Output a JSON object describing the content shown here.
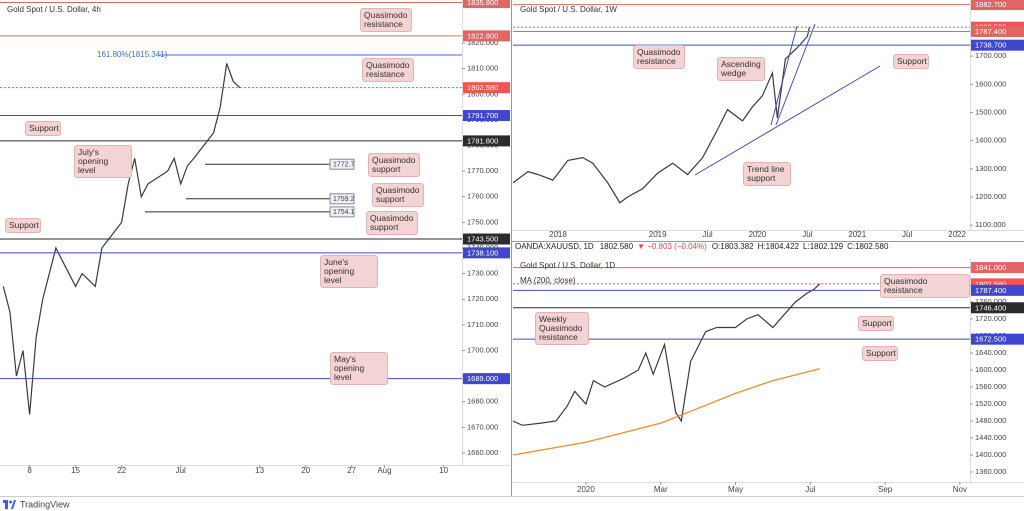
{
  "brand": "TradingView",
  "chart_data": [
    {
      "type": "line",
      "title": "Gold Spot / U.S. Dollar, 4h",
      "series": [
        {
          "color": "#3a3a3a",
          "x": [
            4,
            5,
            6,
            7,
            8,
            9,
            10,
            12,
            13,
            15,
            16,
            18,
            19,
            22,
            23,
            24,
            25,
            26,
            29,
            30,
            31,
            32,
            33,
            36,
            37,
            38,
            39,
            40
          ],
          "values": [
            1725,
            1715,
            1690,
            1700,
            1675,
            1705,
            1720,
            1740,
            1735,
            1725,
            1730,
            1725,
            1740,
            1750,
            1765,
            1775,
            1760,
            1765,
            1770,
            1775,
            1765,
            1772,
            1775,
            1785,
            1795,
            1812,
            1805,
            1802.58
          ]
        }
      ],
      "xlim": [
        3.5,
        73.8
      ],
      "xticks": [
        8,
        15,
        22,
        {
          "value": 31,
          "label": "Jul"
        },
        {
          "value": 43,
          "label": "13"
        },
        {
          "value": 50,
          "label": "20"
        },
        {
          "value": 57,
          "label": "27"
        },
        {
          "value": 62,
          "label": "Aug"
        },
        {
          "value": 71,
          "label": "10"
        }
      ],
      "ylim": [
        1655.3,
        1836.8
      ],
      "yticks": [
        {
          "value": 1660,
          "label": "1660.000"
        },
        {
          "value": 1670,
          "label": "1670.000"
        },
        {
          "value": 1680,
          "label": "1680.000"
        },
        {
          "value": 1690,
          "label": "1690.000"
        },
        {
          "value": 1700,
          "label": "1700.000"
        },
        {
          "value": 1710,
          "label": "1710.000"
        },
        {
          "value": 1720,
          "label": "1720.000"
        },
        {
          "value": 1730,
          "label": "1730.000"
        },
        {
          "value": 1740,
          "label": "1740.000"
        },
        {
          "value": 1750,
          "label": "1750.000"
        },
        {
          "value": 1760,
          "label": "1760.000"
        },
        {
          "value": 1770,
          "label": "1770.000"
        },
        {
          "value": 1780,
          "label": "1780.000"
        },
        {
          "value": 1790,
          "label": "1790.000"
        },
        {
          "value": 1800,
          "label": "1800.000"
        },
        {
          "value": 1810,
          "label": "1810.000"
        },
        {
          "value": 1820,
          "label": "1820.000"
        }
      ],
      "levels": [
        {
          "value": 1835.8,
          "label": "1835.800",
          "color": "#e06666"
        },
        {
          "value": 1822.8,
          "label": "1822.800",
          "color": "#e06666"
        },
        {
          "value": 1802.58,
          "label": "1802.580",
          "color": "#f05454"
        },
        {
          "value": 1791.7,
          "label": "1791.700",
          "color": "#3f48cc"
        },
        {
          "value": 1781.8,
          "label": "1781.800",
          "color": "#2b2b2b"
        },
        {
          "value": 1743.5,
          "label": "1743.500",
          "color": "#2b2b2b"
        },
        {
          "value": 1738.1,
          "label": "1738.100",
          "color": "#3f48cc"
        },
        {
          "value": 1689,
          "label": "1689.000",
          "color": "#3f48cc"
        }
      ],
      "marked_levels": [
        1772.7,
        1759.2,
        1754.1
      ],
      "fib": {
        "value": 1815.341,
        "label": "161.80%(1815.341)"
      },
      "annotations": [
        "Quasimodo resistance",
        "Quasimodo resistance",
        "Support",
        "July's opening level",
        "Quasimodo support",
        "Quasimodo support",
        "Quasimodo support",
        "Support",
        "June's opening level",
        "May's opening level"
      ],
      "grid": false
    },
    {
      "type": "line",
      "title": "Gold Spot / U.S. Dollar, 1W",
      "series": [
        {
          "color": "#3a3a3a",
          "x": [
            2017.55,
            2017.7,
            2017.8,
            2017.95,
            2018.1,
            2018.25,
            2018.35,
            2018.5,
            2018.62,
            2018.7,
            2018.85,
            2019.0,
            2019.15,
            2019.3,
            2019.45,
            2019.6,
            2019.7,
            2019.85,
            2019.95,
            2020.05,
            2020.15,
            2020.2,
            2020.28,
            2020.4,
            2020.5,
            2020.52
          ],
          "values": [
            1250,
            1290,
            1280,
            1260,
            1330,
            1340,
            1320,
            1250,
            1180,
            1200,
            1230,
            1285,
            1320,
            1280,
            1340,
            1440,
            1510,
            1470,
            1520,
            1560,
            1640,
            1480,
            1690,
            1730,
            1770,
            1802.58
          ]
        }
      ],
      "xlim": [
        2017.55,
        2022.13
      ],
      "xticks": [
        2018,
        2019,
        {
          "value": 2019.5,
          "label": "Jul"
        },
        2020,
        {
          "value": 2020.5,
          "label": "Jul"
        },
        2021,
        {
          "value": 2021.5,
          "label": "Jul"
        },
        2022
      ],
      "ylim": [
        1083,
        1899
      ],
      "yticks": [
        {
          "value": 1100,
          "label": "1100.000"
        },
        {
          "value": 1200,
          "label": "1200.000"
        },
        {
          "value": 1300,
          "label": "1300.000"
        },
        {
          "value": 1400,
          "label": "1400.000"
        },
        {
          "value": 1500,
          "label": "1500.000"
        },
        {
          "value": 1600,
          "label": "1600.000"
        },
        {
          "value": 1700,
          "label": "1700.000"
        }
      ],
      "levels": [
        {
          "value": 1882.7,
          "label": "1882.700",
          "color": "#e06666"
        },
        {
          "value": 1802.58,
          "label": "1802.580",
          "color": "#f05454"
        },
        {
          "value": 1787.4,
          "label": "1787.400",
          "color": "#e06666"
        },
        {
          "value": 1738.7,
          "label": "1738.700",
          "color": "#3f48cc"
        }
      ],
      "annotations": [
        "Quasimodo resistance",
        "Ascending wedge",
        "Support",
        "Trend line support"
      ],
      "grid": false
    },
    {
      "type": "line",
      "title": "Gold Spot / U.S. Dollar, 1D",
      "header": {
        "symbol": "OANDA:XAUUSD, 1D",
        "last": "1802.580",
        "change": "▼ −0.803 (−0.04%)",
        "ohlc": [
          {
            "label": "O:",
            "value": "1803.382"
          },
          {
            "label": "H:",
            "value": "1804.422"
          },
          {
            "label": "L:",
            "value": "1802.129"
          },
          {
            "label": "C:",
            "value": "1802.580"
          }
        ]
      },
      "series": [
        {
          "color": "#3a3a3a",
          "x": [
            -1.95,
            -1.7,
            -1.2,
            -0.8,
            -0.5,
            -0.3,
            0,
            0.2,
            0.5,
            1.0,
            1.4,
            1.6,
            1.8,
            2.1,
            2.4,
            2.55,
            2.8,
            3.2,
            3.5,
            4.0,
            4.3,
            4.6,
            5.0,
            5.3,
            5.6,
            5.9,
            6.1,
            6.25
          ],
          "values": [
            1480,
            1470,
            1475,
            1480,
            1515,
            1550,
            1520,
            1575,
            1560,
            1580,
            1600,
            1640,
            1590,
            1660,
            1500,
            1480,
            1620,
            1690,
            1700,
            1700,
            1720,
            1730,
            1700,
            1730,
            1760,
            1780,
            1790,
            1802.58
          ]
        },
        {
          "name": "MA (200, close)",
          "color": "#f08c2a",
          "x": [
            -1.95,
            0,
            2,
            3,
            4,
            5,
            6.25
          ],
          "values": [
            1400,
            1430,
            1475,
            1510,
            1545,
            1575,
            1603
          ]
        }
      ],
      "xlim": [
        -1.95,
        10.27
      ],
      "xticks": [
        {
          "value": 0,
          "label": "2020"
        },
        {
          "value": 2,
          "label": "Mar"
        },
        {
          "value": 4,
          "label": "May"
        },
        {
          "value": 6,
          "label": "Jul"
        },
        {
          "value": 8,
          "label": "Sep"
        },
        {
          "value": 10,
          "label": "Nov"
        }
      ],
      "ylim": [
        1336.5,
        1863.5
      ],
      "yticks": [
        {
          "value": 1360,
          "label": "1360.000"
        },
        {
          "value": 1400,
          "label": "1400.000"
        },
        {
          "value": 1440,
          "label": "1440.000"
        },
        {
          "value": 1480,
          "label": "1480.000"
        },
        {
          "value": 1520,
          "label": "1520.000"
        },
        {
          "value": 1560,
          "label": "1560.000"
        },
        {
          "value": 1600,
          "label": "1600.000"
        },
        {
          "value": 1640,
          "label": "1640.000"
        },
        {
          "value": 1680,
          "label": "1680.000"
        },
        {
          "value": 1720,
          "label": "1720.000"
        },
        {
          "value": 1760,
          "label": "1760.000"
        },
        {
          "value": 1800,
          "label": "1800.000"
        },
        {
          "value": 1840,
          "label": "1840.000"
        }
      ],
      "levels": [
        {
          "value": 1841,
          "label": "1841.000",
          "color": "#e06666"
        },
        {
          "value": 1802.58,
          "label": "1802.580",
          "color": "#f05454"
        },
        {
          "value": 1787.4,
          "label": "1787.400",
          "color": "#3f48cc"
        },
        {
          "value": 1746.4,
          "label": "1746.400",
          "color": "#2b2b2b"
        },
        {
          "value": 1672.5,
          "label": "1672.500",
          "color": "#3f48cc"
        }
      ],
      "annotations": [
        "Quasimodo resistance",
        "Weekly Quasimodo resistance",
        "Support",
        "Support"
      ],
      "grid": false
    }
  ]
}
